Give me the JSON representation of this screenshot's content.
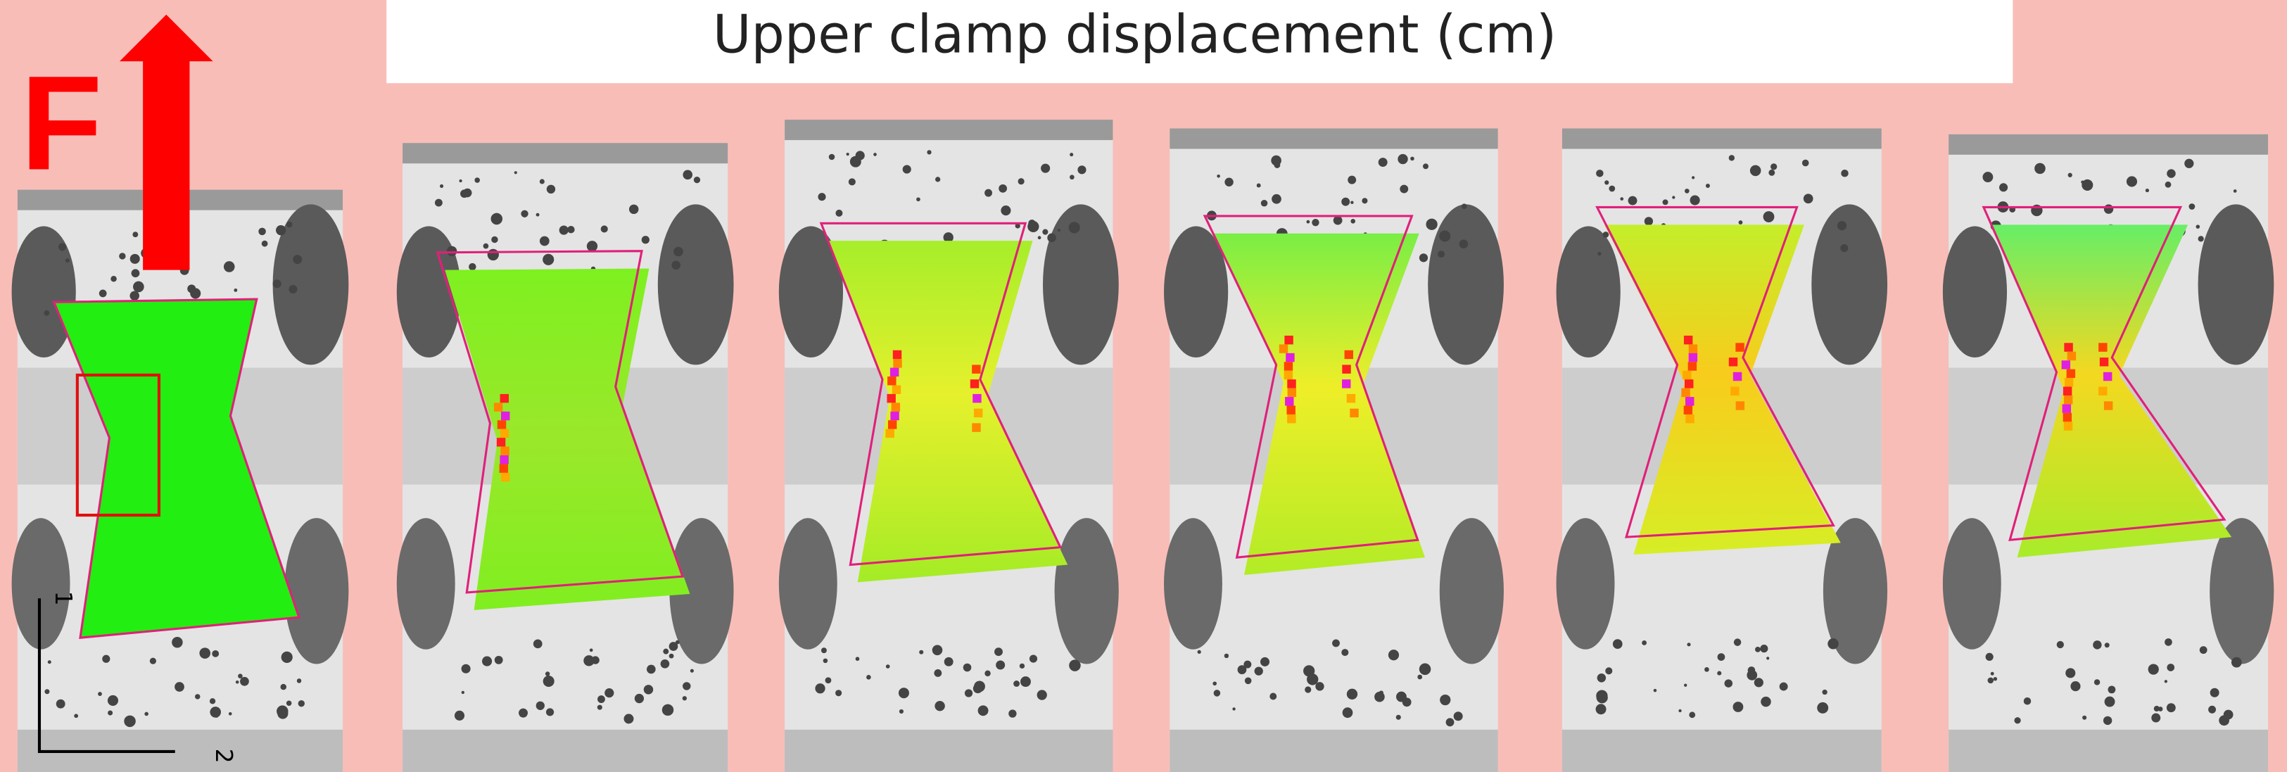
{
  "title": "Upper clamp displacement (cm)",
  "force_label": "F",
  "axes": {
    "axis_1": "1",
    "axis_2": "2"
  }
}
